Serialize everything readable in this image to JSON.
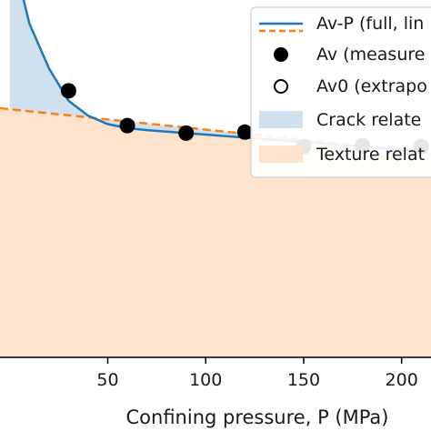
{
  "chart_data": {
    "type": "line",
    "title": "",
    "xlabel": "Confining pressure, P (MPa)",
    "ylabel": "",
    "xlim": [
      -5,
      215
    ],
    "ylim": [
      0,
      1
    ],
    "x_ticks": [
      "50",
      "100",
      "150",
      "200"
    ],
    "x_tick_values": [
      50,
      100,
      150,
      200
    ],
    "grid": false,
    "legend_position": "top-right",
    "series": [
      {
        "name": "Av-P (full, lin",
        "kind": "line",
        "color": "#1f77b4",
        "x": [
          0,
          10,
          20,
          30,
          40,
          50,
          60,
          70,
          80,
          90,
          100,
          110,
          120,
          130,
          140,
          150,
          160,
          170,
          180,
          190,
          200,
          210
        ],
        "y": [
          0.83,
          0.67,
          0.58,
          0.515,
          0.485,
          0.468,
          0.46,
          0.456,
          0.453,
          0.45,
          0.447,
          0.444,
          0.441,
          0.438,
          0.435,
          0.432,
          0.429,
          0.426,
          0.423,
          0.42,
          0.417,
          0.414
        ]
      },
      {
        "name": "",
        "kind": "dashed-line",
        "color": "#ff7f0e",
        "x": [
          -5,
          215
        ],
        "y": [
          0.5,
          0.41
        ]
      },
      {
        "name": "Av (measure",
        "kind": "scatter-filled",
        "color": "#000000",
        "x": [
          30,
          60,
          90,
          120,
          150,
          180,
          210
        ],
        "y": [
          0.535,
          0.465,
          0.45,
          0.452,
          0.423,
          0.425,
          0.423
        ]
      },
      {
        "name": "Av0 (extrapo",
        "kind": "scatter-open",
        "color": "#000000",
        "x": [],
        "y": []
      }
    ],
    "areas": [
      {
        "name": "Crack relate",
        "color": "#cfe0ef",
        "between": "Av-P and Av0 extrapolation"
      },
      {
        "name": "Texture relat",
        "color": "#fde3cc",
        "between": "Av0 extrapolation and zero"
      }
    ]
  },
  "legend": {
    "items": [
      {
        "label": "Av-P (full, lin",
        "marker": "line",
        "color": "#1f77b4"
      },
      {
        "label": "",
        "marker": "dashed-line",
        "color": "#ff7f0e"
      },
      {
        "label": "Av (measure",
        "marker": "filled-circle",
        "color": "#000000"
      },
      {
        "label": "Av0 (extrapo",
        "marker": "open-circle",
        "color": "#000000"
      },
      {
        "label": "Crack relate",
        "marker": "patch",
        "color": "#cfe0ef"
      },
      {
        "label": "Texture relat",
        "marker": "patch",
        "color": "#fde3cc"
      }
    ]
  }
}
